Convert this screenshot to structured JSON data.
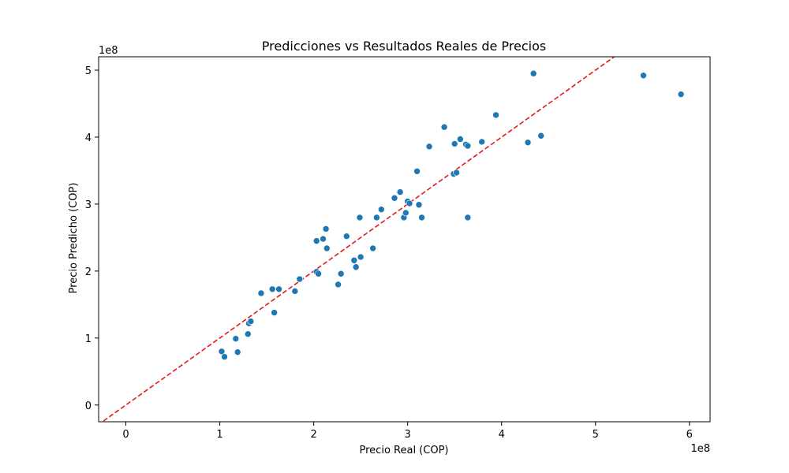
{
  "chart_data": {
    "type": "scatter",
    "title": "Predicciones vs Resultados Reales de Precios",
    "xlabel": "Precio Real (COP)",
    "ylabel": "Precio Predicho (COP)",
    "x_offset_label": "1e8",
    "y_offset_label": "1e8",
    "x_scale": 100000000,
    "y_scale": 100000000,
    "xlim": [
      -0.29,
      6.22
    ],
    "ylim": [
      -0.25,
      5.2
    ],
    "x_ticks": [
      0,
      1,
      2,
      3,
      4,
      5,
      6
    ],
    "y_ticks": [
      0,
      1,
      2,
      3,
      4,
      5
    ],
    "x_tick_labels": [
      "0",
      "1",
      "2",
      "3",
      "4",
      "5",
      "6"
    ],
    "y_tick_labels": [
      "0",
      "1",
      "2",
      "3",
      "4",
      "5"
    ],
    "grid": false,
    "legend": "none",
    "point_color": "#1f77b4",
    "reference_line": {
      "from": [
        -0.3,
        -0.3
      ],
      "to": [
        6.3,
        6.3
      ],
      "color": "#e31a1c",
      "style": "dashed"
    },
    "points": [
      [
        1.02,
        0.8
      ],
      [
        1.05,
        0.72
      ],
      [
        1.17,
        0.99
      ],
      [
        1.19,
        0.79
      ],
      [
        1.3,
        1.06
      ],
      [
        1.31,
        1.22
      ],
      [
        1.33,
        1.25
      ],
      [
        1.44,
        1.67
      ],
      [
        1.56,
        1.73
      ],
      [
        1.58,
        1.38
      ],
      [
        1.63,
        1.73
      ],
      [
        1.8,
        1.7
      ],
      [
        1.85,
        1.88
      ],
      [
        2.03,
        2.45
      ],
      [
        2.03,
        1.99
      ],
      [
        2.05,
        1.96
      ],
      [
        2.1,
        2.48
      ],
      [
        2.13,
        2.63
      ],
      [
        2.14,
        2.34
      ],
      [
        2.26,
        1.8
      ],
      [
        2.29,
        1.96
      ],
      [
        2.35,
        2.52
      ],
      [
        2.43,
        2.16
      ],
      [
        2.45,
        2.06
      ],
      [
        2.49,
        2.8
      ],
      [
        2.5,
        2.21
      ],
      [
        2.63,
        2.34
      ],
      [
        2.67,
        2.8
      ],
      [
        2.72,
        2.92
      ],
      [
        2.86,
        3.09
      ],
      [
        2.92,
        3.18
      ],
      [
        2.96,
        2.8
      ],
      [
        2.98,
        2.87
      ],
      [
        3.0,
        3.04
      ],
      [
        3.02,
        3.01
      ],
      [
        3.1,
        3.49
      ],
      [
        3.12,
        2.99
      ],
      [
        3.15,
        2.8
      ],
      [
        3.23,
        3.86
      ],
      [
        3.39,
        4.15
      ],
      [
        3.49,
        3.45
      ],
      [
        3.5,
        3.9
      ],
      [
        3.52,
        3.47
      ],
      [
        3.56,
        3.97
      ],
      [
        3.62,
        3.89
      ],
      [
        3.64,
        3.87
      ],
      [
        3.64,
        2.8
      ],
      [
        3.79,
        3.93
      ],
      [
        3.94,
        4.33
      ],
      [
        4.28,
        3.92
      ],
      [
        4.34,
        4.95
      ],
      [
        4.42,
        4.02
      ],
      [
        5.51,
        4.92
      ],
      [
        5.91,
        4.64
      ]
    ]
  }
}
